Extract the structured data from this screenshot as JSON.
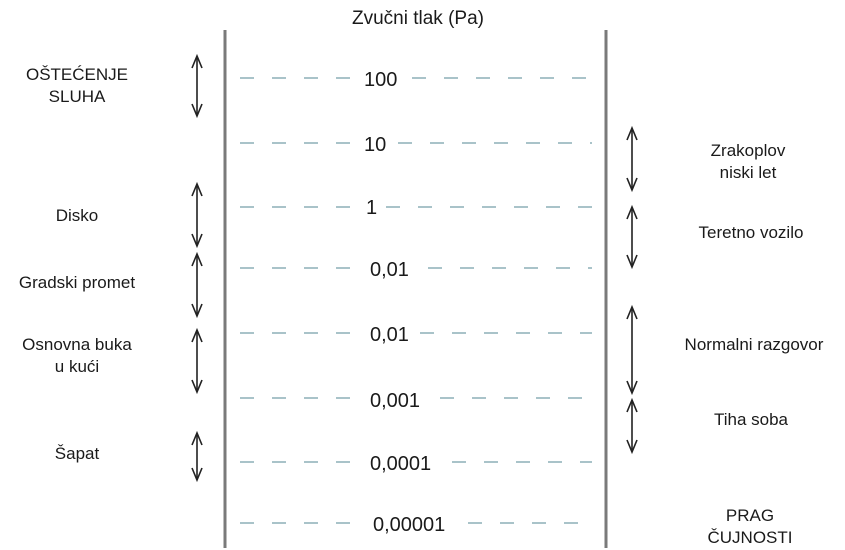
{
  "title": "Zvučni tlak (Pa)",
  "levels": [
    "100",
    "10",
    "1",
    "0,01",
    "0,01",
    "0,001",
    "0,0001",
    "0,00001"
  ],
  "left_labels": [
    {
      "lines": [
        "OŠTEĆENJE",
        "SLUHA"
      ]
    },
    {
      "lines": [
        "Disko"
      ]
    },
    {
      "lines": [
        "Gradski promet"
      ]
    },
    {
      "lines": [
        "Osnovna buka",
        "u kući"
      ]
    },
    {
      "lines": [
        "Šapat"
      ]
    }
  ],
  "right_labels": [
    {
      "lines": [
        "Zrakoplov",
        "niski let"
      ]
    },
    {
      "lines": [
        "Teretno vozilo"
      ]
    },
    {
      "lines": [
        "Normalni razgovor"
      ]
    },
    {
      "lines": [
        "Tiha soba"
      ]
    },
    {
      "lines": [
        "PRAG",
        "ČUJNOSTI"
      ]
    }
  ],
  "colors": {
    "text": "#1a1a1a",
    "frame": "#7a7a7a",
    "dashes": "#a9c3c9",
    "arrows": "#222222"
  }
}
